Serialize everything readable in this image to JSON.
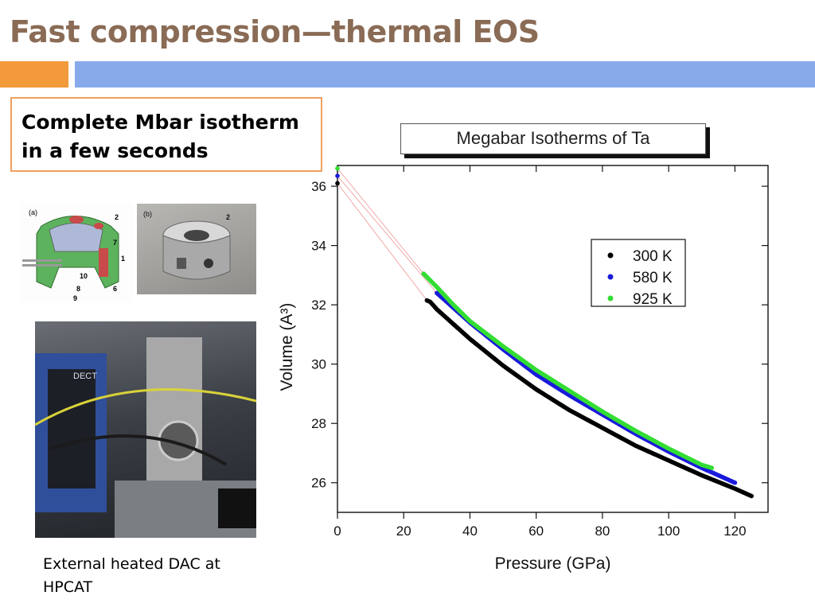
{
  "slide": {
    "title": "Fast compression—thermal EOS",
    "callout": "Complete Mbar isotherm\nin a few seconds",
    "caption": "External heated DAC at\nHPCAT",
    "diagram_labels": {
      "panel_a": "(a)",
      "panel_b": "(b)",
      "n2a": "2",
      "n7": "7",
      "n1": "1",
      "n10": "10",
      "n8": "8",
      "n6": "6",
      "n9": "9",
      "n2b": "2"
    },
    "photo_text": "DECT",
    "colors": {
      "title": "#8a6b55",
      "accent_orange": "#f39a3a",
      "accent_blue": "#88aaea"
    }
  },
  "chart_data": {
    "type": "scatter",
    "title": "Megabar Isotherms of Ta",
    "xlabel": "Pressure (GPa)",
    "ylabel": "Volume (A³)",
    "xlim": [
      0,
      130
    ],
    "ylim": [
      25,
      36.7
    ],
    "xticks": [
      0,
      20,
      40,
      60,
      80,
      100,
      120
    ],
    "yticks": [
      26,
      28,
      30,
      32,
      34,
      36
    ],
    "legend_position": "top-right",
    "series": [
      {
        "name": "300 K",
        "color": "#000000",
        "x": [
          0,
          27,
          28,
          30,
          35,
          40,
          50,
          60,
          70,
          80,
          90,
          100,
          110,
          120,
          125
        ],
        "y": [
          36.1,
          32.15,
          32.1,
          31.85,
          31.35,
          30.85,
          29.95,
          29.15,
          28.45,
          27.85,
          27.25,
          26.75,
          26.25,
          25.8,
          25.55
        ]
      },
      {
        "name": "580 K",
        "color": "#1a1adc",
        "x": [
          0,
          30,
          32,
          35,
          40,
          50,
          60,
          70,
          80,
          90,
          100,
          110,
          120
        ],
        "y": [
          36.35,
          32.4,
          32.2,
          31.9,
          31.4,
          30.5,
          29.65,
          28.95,
          28.3,
          27.65,
          27.05,
          26.5,
          26.0
        ]
      },
      {
        "name": "925 K",
        "color": "#33dd33",
        "x": [
          0,
          26,
          30,
          35,
          40,
          50,
          60,
          70,
          80,
          90,
          100,
          110,
          113
        ],
        "y": [
          36.6,
          33.05,
          32.6,
          32.0,
          31.45,
          30.6,
          29.8,
          29.1,
          28.4,
          27.75,
          27.15,
          26.6,
          26.5
        ]
      }
    ]
  }
}
